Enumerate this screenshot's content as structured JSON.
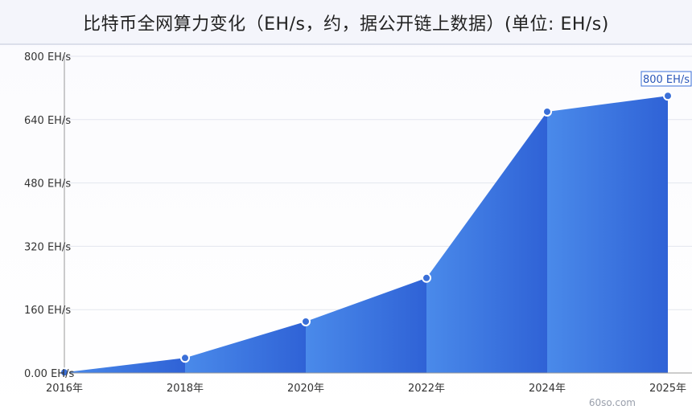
{
  "title": "比特币全网算力变化（EH/s，约，据公开链上数据）(单位: EH/s)",
  "watermark": "60so.com",
  "colors": {
    "area_dark": "#2f62d6",
    "area_light": "#4a8aea",
    "point": "#3a6fd8",
    "grid": "#e3e6ee",
    "annotation_border": "#3a6fd8"
  },
  "chart_data": {
    "type": "area",
    "x": [
      "2016年",
      "2018年",
      "2020年",
      "2022年",
      "2024年",
      "2025年"
    ],
    "series": [
      {
        "values": [
          1.5,
          38,
          130,
          240,
          660,
          700
        ]
      }
    ],
    "yticks": [
      "0.00 EH/s",
      "160 EH/s",
      "320 EH/s",
      "480 EH/s",
      "640 EH/s",
      "800 EH/s"
    ],
    "ytick_values": [
      0,
      160,
      320,
      480,
      640,
      800
    ],
    "ylim": [
      0,
      800
    ],
    "annotation": "800 EH/s",
    "grid": true
  }
}
